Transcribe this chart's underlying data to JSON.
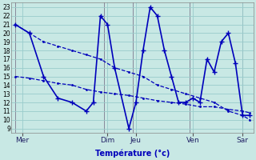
{
  "xlabel": "Température (°c)",
  "bg_color": "#c8e8e4",
  "grid_color": "#99cccc",
  "line_color": "#0000bb",
  "ylim": [
    8.5,
    23.5
  ],
  "yticks": [
    9,
    10,
    11,
    12,
    13,
    14,
    15,
    16,
    17,
    18,
    19,
    20,
    21,
    22,
    23
  ],
  "xlim": [
    -0.5,
    33.5
  ],
  "day_labels": [
    "Mer",
    "Dim",
    "Jeu",
    "Ven",
    "Sar"
  ],
  "day_tick_positions": [
    1,
    13,
    17,
    25,
    32
  ],
  "day_vline_positions": [
    0,
    12.5,
    16.5,
    24.5,
    32
  ],
  "series1_x": [
    0,
    2,
    4,
    6,
    8,
    10,
    12,
    14,
    16,
    18,
    20,
    22,
    24,
    26,
    28,
    30,
    32,
    33
  ],
  "series1_y": [
    21,
    20,
    19,
    18.5,
    18,
    17.5,
    17,
    16,
    15.5,
    15,
    14,
    13.5,
    13,
    12.5,
    12,
    11,
    10.5,
    10
  ],
  "series2_x": [
    0,
    2,
    4,
    6,
    8,
    10,
    12,
    14,
    16,
    18,
    20,
    22,
    24,
    26,
    28,
    30,
    32,
    33
  ],
  "series2_y": [
    15,
    14.8,
    14.5,
    14.2,
    14,
    13.5,
    13.2,
    13,
    12.8,
    12.5,
    12.2,
    12,
    11.8,
    11.5,
    11.5,
    11.2,
    11,
    10.8
  ],
  "series3_x": [
    0,
    2,
    4,
    6,
    8,
    10,
    11,
    12,
    13,
    14,
    16,
    17,
    18,
    19,
    20,
    21,
    22,
    23,
    24,
    25,
    26,
    27,
    28,
    29,
    30,
    31,
    32,
    33
  ],
  "series3_y": [
    21,
    20,
    15,
    12.5,
    12,
    11,
    12,
    22,
    21,
    16,
    9,
    12,
    18,
    23,
    22,
    18,
    15,
    12,
    12,
    12.5,
    12,
    17,
    15.5,
    19,
    20,
    16.5,
    10.5,
    10.5
  ]
}
